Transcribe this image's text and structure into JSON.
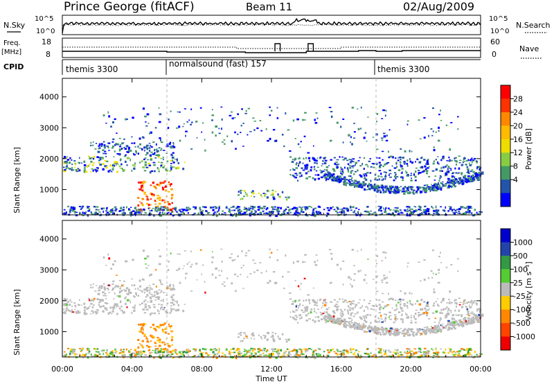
{
  "header": {
    "station": "Prince George (fitACF)",
    "beam": "Beam 11",
    "date": "02/Aug/2009"
  },
  "nsky_panel": {
    "label": "N.Sky",
    "left_ticks": [
      "10^5",
      "10^0"
    ],
    "right_label": "N.Search",
    "right_ticks": [
      "10^5",
      "10^0"
    ]
  },
  "freq_panel": {
    "label_line1": "Freq.",
    "label_line2": "[MHz]",
    "left_ticks": [
      "18",
      "8"
    ],
    "right_label": "Nave",
    "right_ticks": [
      "60",
      "0"
    ]
  },
  "cpid_panel": {
    "label": "CPID",
    "segments": [
      {
        "name": "themis 3300",
        "start_hour": 0
      },
      {
        "name": "normalsound (fast) 157",
        "start_hour": 6
      },
      {
        "name": "themis 3300",
        "start_hour": 18
      }
    ]
  },
  "power_panel": {
    "ylabel": "Slant Range [km]",
    "colorbar_label": "Power [dB]",
    "colorbar_ticks": [
      "28",
      "24",
      "20",
      "16",
      "12",
      "8",
      "4"
    ],
    "colorbar_colors": [
      "#ff0000",
      "#ff3300",
      "#ff8800",
      "#ffbb00",
      "#eedd00",
      "#88cc44",
      "#449966",
      "#2255aa",
      "#0000ff"
    ]
  },
  "velocity_panel": {
    "ylabel": "Slant Range [km]",
    "colorbar_label": "Velocity [m s⁻¹]",
    "colorbar_ticks": [
      "1000",
      "500",
      "100",
      "25",
      "-25",
      "-100",
      "-500",
      "-1000"
    ],
    "colorbar_colors": [
      "#0000cc",
      "#2244aa",
      "#339944",
      "#55cc33",
      "#bbbbbb",
      "#ffcc00",
      "#ff8800",
      "#ff4400",
      "#ee0000"
    ]
  },
  "chart_data": {
    "type": "heatmap",
    "xlabel": "Time UT",
    "x_ticks": [
      "00:00",
      "04:00",
      "08:00",
      "12:00",
      "16:00",
      "20:00",
      "00:00"
    ],
    "xlim_hours": [
      0,
      24
    ],
    "ylim_km": [
      180,
      4600
    ],
    "y_ticks": [
      1000,
      2000,
      3000,
      4000
    ],
    "power_bands": [
      {
        "t0": 0,
        "t1": 7,
        "range_km": 1850,
        "width_km": 260,
        "level": "medium"
      },
      {
        "t0": 1.5,
        "t1": 6.5,
        "range_km": 2350,
        "width_km": 220,
        "level": "low"
      },
      {
        "t0": 4.3,
        "t1": 6.3,
        "range_km": 800,
        "width_km": 500,
        "level": "high"
      },
      {
        "t0": 10,
        "t1": 13,
        "range_km": 850,
        "width_km": 150,
        "level": "medium"
      },
      {
        "t0": 13,
        "t1": 24,
        "range_km": 1700,
        "width_km": 400,
        "level": "low"
      },
      {
        "t0": 0,
        "t1": 24,
        "range_km": 300,
        "width_km": 180,
        "level": "low"
      }
    ]
  }
}
